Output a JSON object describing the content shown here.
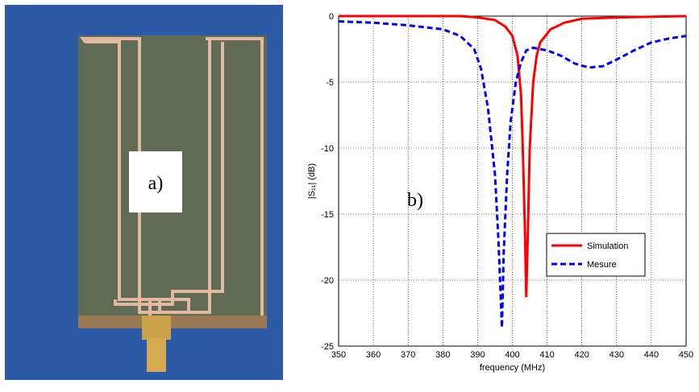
{
  "photo": {
    "label": "a)"
  },
  "chart_data": {
    "type": "line",
    "annotation": "b)",
    "xlabel": "frequency (MHz)",
    "ylabel": "|S₁₁| (dB)",
    "xlim": [
      350,
      450
    ],
    "xticks": [
      350,
      360,
      370,
      380,
      390,
      400,
      410,
      420,
      430,
      440,
      450
    ],
    "ylim": [
      -25,
      0
    ],
    "yticks": [
      -25,
      -20,
      -15,
      -10,
      -5,
      0
    ],
    "grid": true,
    "legend": "lower right",
    "series": [
      {
        "name": "Simulation",
        "color": "#ff0000",
        "dash": false,
        "x": [
          350,
          385,
          390,
          395,
          398,
          400,
          401.5,
          402.5,
          403,
          403.6,
          404,
          404.5,
          405,
          406,
          407,
          408,
          411,
          415,
          420,
          430,
          450
        ],
        "values": [
          0,
          0,
          -0.1,
          -0.3,
          -0.8,
          -1.5,
          -3,
          -6,
          -10,
          -16,
          -21.3,
          -16,
          -10,
          -5,
          -3,
          -2,
          -1,
          -0.5,
          -0.2,
          -0.1,
          0
        ]
      },
      {
        "name": "Mesure",
        "color": "#0000ff",
        "dash": true,
        "x": [
          350,
          360,
          370,
          380,
          385,
          389,
          391,
          393,
          395,
          396,
          397,
          397.5,
          398.5,
          399.5,
          401,
          402.5,
          404,
          406,
          410,
          414,
          418,
          422,
          426,
          430,
          435,
          440,
          445,
          450
        ],
        "values": [
          -0.4,
          -0.5,
          -0.7,
          -1,
          -1.5,
          -2.5,
          -4,
          -7,
          -12,
          -17,
          -23.6,
          -18,
          -12,
          -8,
          -5,
          -3.5,
          -2.6,
          -2.4,
          -2.6,
          -3,
          -3.6,
          -3.9,
          -3.8,
          -3.3,
          -2.6,
          -2,
          -1.7,
          -1.5
        ]
      }
    ]
  }
}
